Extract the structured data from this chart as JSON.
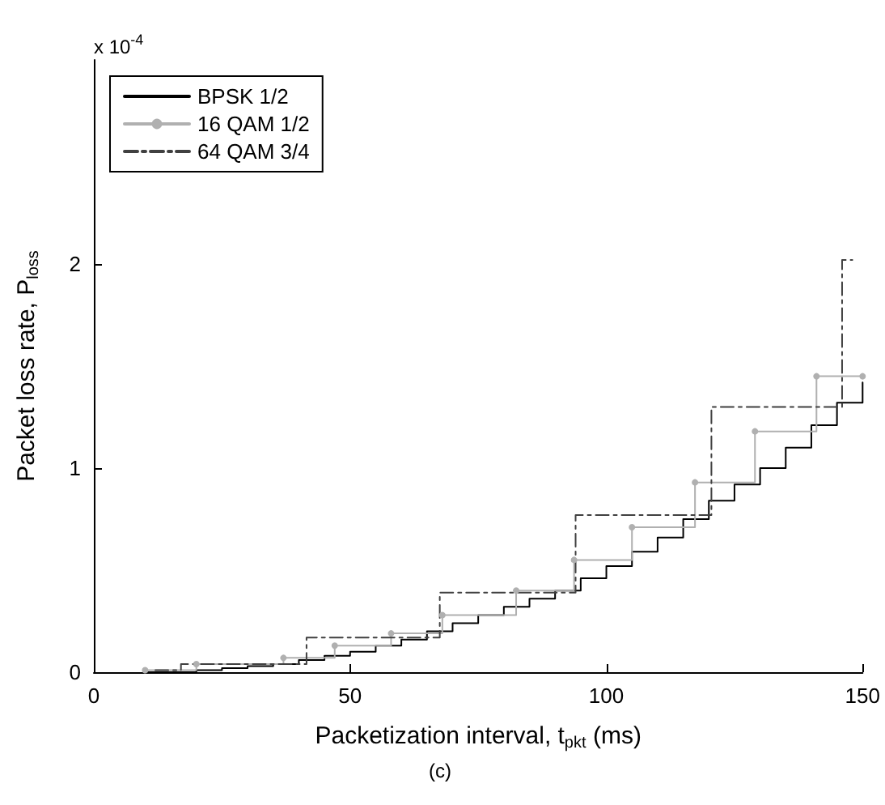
{
  "chart_data": {
    "type": "step",
    "xlabel": "Packetization interval, t$_{pkt}$ (ms)",
    "ylabel": "Packet loss rate, P$_{loss}$",
    "annotations": [
      "x 10$^{-4}$",
      "(c)"
    ],
    "xlim": [
      0,
      150
    ],
    "xticks": [
      0,
      50,
      100,
      150
    ],
    "ylim": [
      0,
      3
    ],
    "yticks": [
      0,
      1,
      2
    ],
    "grid": false,
    "legend": "top left",
    "series": [
      {
        "name": "BPSK 1/2",
        "color": "#000000",
        "marker": "none",
        "line_style": "solid",
        "x": [
          10,
          15,
          20,
          25,
          30,
          35,
          40,
          45,
          50,
          55,
          60,
          65,
          70,
          75,
          80,
          85,
          90,
          95,
          100,
          105,
          110,
          115,
          120,
          125,
          130,
          135,
          140,
          145,
          150
        ],
        "values": [
          0,
          0,
          0.01,
          0.02,
          0.03,
          0.04,
          0.06,
          0.08,
          0.1,
          0.13,
          0.16,
          0.2,
          0.24,
          0.28,
          0.32,
          0.36,
          0.4,
          0.46,
          0.52,
          0.59,
          0.66,
          0.75,
          0.84,
          0.92,
          1.0,
          1.1,
          1.21,
          1.32,
          1.42
        ]
      },
      {
        "name": "16 QAM 1/2",
        "color": "#b0b0b0",
        "marker": "circle",
        "line_style": "solid",
        "x": [
          10,
          20,
          37,
          47,
          58,
          68,
          82.4,
          93.7,
          105,
          117.3,
          129,
          141,
          150
        ],
        "values": [
          0.01,
          0.04,
          0.07,
          0.13,
          0.19,
          0.28,
          0.4,
          0.55,
          0.71,
          0.93,
          1.18,
          1.45,
          1.45
        ]
      },
      {
        "name": "64 QAM 3/4",
        "color": "#404040",
        "marker": "none",
        "line_style": "dashed",
        "x": [
          12,
          17,
          41.5,
          67.5,
          94,
          120.5,
          146,
          148
        ],
        "values": [
          0.01,
          0.04,
          0.17,
          0.39,
          0.77,
          1.3,
          2.02,
          2.02
        ]
      }
    ]
  }
}
